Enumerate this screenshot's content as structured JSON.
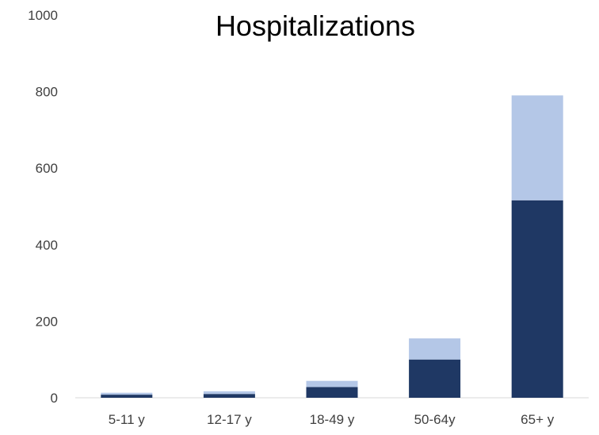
{
  "chart_data": {
    "type": "bar",
    "stacked": true,
    "title": "Hospitalizations",
    "xlabel": "",
    "ylabel": "",
    "categories": [
      "5-11 y",
      "12-17 y",
      "18-49 y",
      "50-64y",
      "65+ y"
    ],
    "series": [
      {
        "values": [
          8,
          10,
          28,
          100,
          516
        ],
        "color": "#1f3864"
      },
      {
        "values": [
          5,
          7,
          16,
          55,
          274
        ],
        "color": "#b4c7e7"
      }
    ],
    "ylim": [
      0,
      1000
    ],
    "yticks": [
      "0",
      "200",
      "400",
      "600",
      "800",
      "1000"
    ],
    "grid": false,
    "legend": "none"
  }
}
